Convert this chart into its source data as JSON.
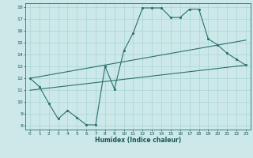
{
  "xlabel": "Humidex (Indice chaleur)",
  "xlim": [
    -0.5,
    23.5
  ],
  "ylim": [
    7.7,
    18.3
  ],
  "yticks": [
    8,
    9,
    10,
    11,
    12,
    13,
    14,
    15,
    16,
    17,
    18
  ],
  "xticks": [
    0,
    1,
    2,
    3,
    4,
    5,
    6,
    7,
    8,
    9,
    10,
    11,
    12,
    13,
    14,
    15,
    16,
    17,
    18,
    19,
    20,
    21,
    22,
    23
  ],
  "background_color": "#cce8e8",
  "line_color": "#2a7070",
  "grid_color": "#aad4d4",
  "line1_x": [
    0,
    1,
    2,
    3,
    4,
    5,
    6,
    7,
    8,
    9,
    10,
    11,
    12,
    13,
    14,
    15,
    16,
    17,
    18,
    19,
    20,
    21,
    22,
    23
  ],
  "line1_y": [
    12.0,
    11.3,
    9.9,
    8.6,
    9.3,
    8.7,
    8.1,
    8.1,
    13.0,
    11.1,
    14.3,
    15.8,
    17.9,
    17.9,
    17.9,
    17.1,
    17.1,
    17.8,
    17.8,
    15.3,
    14.8,
    14.1,
    13.6,
    13.1
  ],
  "line2_x": [
    0,
    23
  ],
  "line2_y": [
    11.0,
    13.1
  ],
  "line3_x": [
    0,
    23
  ],
  "line3_y": [
    12.0,
    15.2
  ]
}
